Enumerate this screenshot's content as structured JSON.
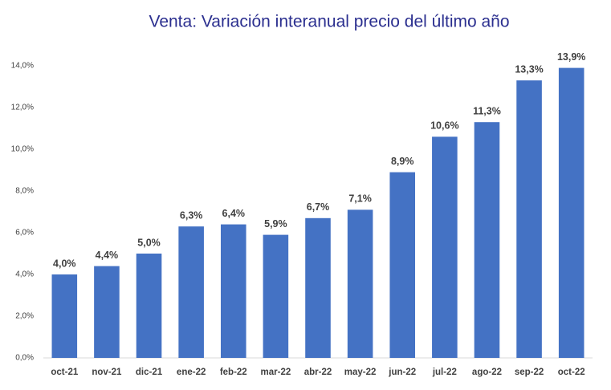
{
  "chart_data": {
    "type": "bar",
    "title": "Venta: Variación interanual precio del último año",
    "categories": [
      "oct-21",
      "nov-21",
      "dic-21",
      "ene-22",
      "feb-22",
      "mar-22",
      "abr-22",
      "may-22",
      "jun-22",
      "jul-22",
      "ago-22",
      "sep-22",
      "oct-22"
    ],
    "values": [
      4.0,
      4.4,
      5.0,
      6.3,
      6.4,
      5.9,
      6.7,
      7.1,
      8.9,
      10.6,
      11.3,
      13.3,
      13.9
    ],
    "value_labels": [
      "4,0%",
      "4,4%",
      "5,0%",
      "6,3%",
      "6,4%",
      "5,9%",
      "6,7%",
      "7,1%",
      "8,9%",
      "10,6%",
      "11,3%",
      "13,3%",
      "13,9%"
    ],
    "color": "#4472c4",
    "ylim": [
      0,
      14
    ],
    "yticks": [
      {
        "value": 0,
        "label": "0,0%"
      },
      {
        "value": 2,
        "label": "2,0%"
      },
      {
        "value": 4,
        "label": "4,0%"
      },
      {
        "value": 6,
        "label": "6,0%"
      },
      {
        "value": 8,
        "label": "8,0%"
      },
      {
        "value": 10,
        "label": "10,0%"
      },
      {
        "value": 12,
        "label": "12,0%"
      },
      {
        "value": 14,
        "label": "14,0%"
      }
    ],
    "grid": false
  }
}
